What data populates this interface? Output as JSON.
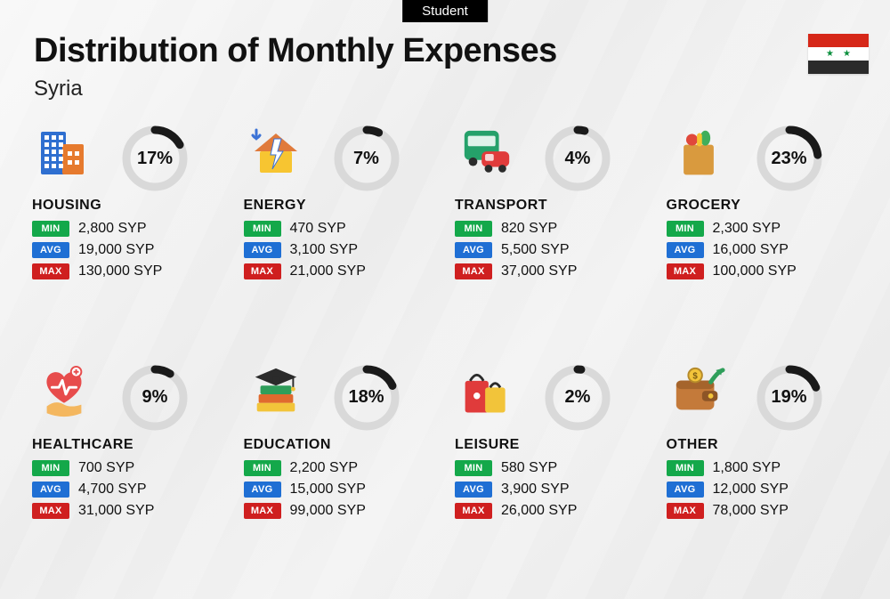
{
  "tag": "Student",
  "title": "Distribution of Monthly Expenses",
  "subtitle": "Syria",
  "flag": {
    "stripes": [
      "#d62718",
      "#ffffff",
      "#2b2b2b"
    ],
    "star_color": "#0a8f3d",
    "stars": 2
  },
  "labels": {
    "min": "MIN",
    "avg": "AVG",
    "max": "MAX"
  },
  "colors": {
    "min": "#14a84a",
    "avg": "#1f6fd4",
    "max": "#cf1f1f",
    "ring_track": "#d9d9d9",
    "ring_fill": "#1a1a1a",
    "text": "#111111"
  },
  "ring": {
    "radius": 32,
    "stroke_width": 9
  },
  "currency_suffix": " SYP",
  "categories": [
    {
      "key": "housing",
      "name": "HOUSING",
      "pct": 17,
      "min": "2,800",
      "avg": "19,000",
      "max": "130,000",
      "icon": "buildings"
    },
    {
      "key": "energy",
      "name": "ENERGY",
      "pct": 7,
      "min": "470",
      "avg": "3,100",
      "max": "21,000",
      "icon": "house-bolt"
    },
    {
      "key": "transport",
      "name": "TRANSPORT",
      "pct": 4,
      "min": "820",
      "avg": "5,500",
      "max": "37,000",
      "icon": "bus-car"
    },
    {
      "key": "grocery",
      "name": "GROCERY",
      "pct": 23,
      "min": "2,300",
      "avg": "16,000",
      "max": "100,000",
      "icon": "grocery-bag"
    },
    {
      "key": "healthcare",
      "name": "HEALTHCARE",
      "pct": 9,
      "min": "700",
      "avg": "4,700",
      "max": "31,000",
      "icon": "heart-hand"
    },
    {
      "key": "education",
      "name": "EDUCATION",
      "pct": 18,
      "min": "2,200",
      "avg": "15,000",
      "max": "99,000",
      "icon": "grad-books"
    },
    {
      "key": "leisure",
      "name": "LEISURE",
      "pct": 2,
      "min": "580",
      "avg": "3,900",
      "max": "26,000",
      "icon": "shopping-bags"
    },
    {
      "key": "other",
      "name": "OTHER",
      "pct": 19,
      "min": "1,800",
      "avg": "12,000",
      "max": "78,000",
      "icon": "wallet-arrow"
    }
  ],
  "icons": {
    "buildings": {
      "palette": [
        "#2f6fd0",
        "#e67a2e",
        "#ffffff"
      ]
    },
    "house-bolt": {
      "palette": [
        "#f7c531",
        "#e07a3b",
        "#3b72d6"
      ]
    },
    "bus-car": {
      "palette": [
        "#25a16a",
        "#e03b3b",
        "#2b2b2b"
      ]
    },
    "grocery-bag": {
      "palette": [
        "#d99a3e",
        "#e0483b",
        "#3fae5a",
        "#f7c531"
      ]
    },
    "heart-hand": {
      "palette": [
        "#e74c4c",
        "#f4b75f",
        "#ffffff"
      ]
    },
    "grad-books": {
      "palette": [
        "#2b2b2b",
        "#2f9e5a",
        "#e06a2e",
        "#f2c43a"
      ]
    },
    "shopping-bags": {
      "palette": [
        "#e03b3b",
        "#f2c43a",
        "#2b2b2b"
      ]
    },
    "wallet-arrow": {
      "palette": [
        "#c47a3a",
        "#2f9e5a",
        "#f2c43a"
      ]
    }
  }
}
